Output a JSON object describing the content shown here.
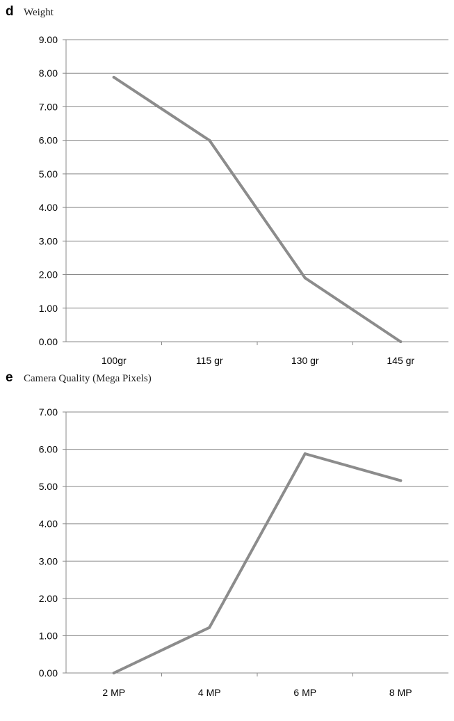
{
  "chart_data": [
    {
      "type": "line",
      "panel": "d",
      "title": "Weight",
      "categories": [
        "100gr",
        "115 gr",
        "130 gr",
        "145 gr"
      ],
      "values": [
        7.88,
        6.0,
        1.9,
        0.0
      ],
      "y_ticks": [
        "0.00",
        "1.00",
        "2.00",
        "3.00",
        "4.00",
        "5.00",
        "6.00",
        "7.00",
        "8.00",
        "9.00"
      ],
      "ylim": [
        0,
        9
      ],
      "grid": true,
      "series_color": "#8c8c8c"
    },
    {
      "type": "line",
      "panel": "e",
      "title": "Camera Quality (Mega Pixels)",
      "categories": [
        "2 MP",
        "4 MP",
        "6 MP",
        "8 MP"
      ],
      "values": [
        0.0,
        1.22,
        5.88,
        5.16
      ],
      "y_ticks": [
        "0.00",
        "1.00",
        "2.00",
        "3.00",
        "4.00",
        "5.00",
        "6.00",
        "7.00"
      ],
      "ylim": [
        0,
        7
      ],
      "grid": true,
      "series_color": "#8c8c8c"
    }
  ]
}
